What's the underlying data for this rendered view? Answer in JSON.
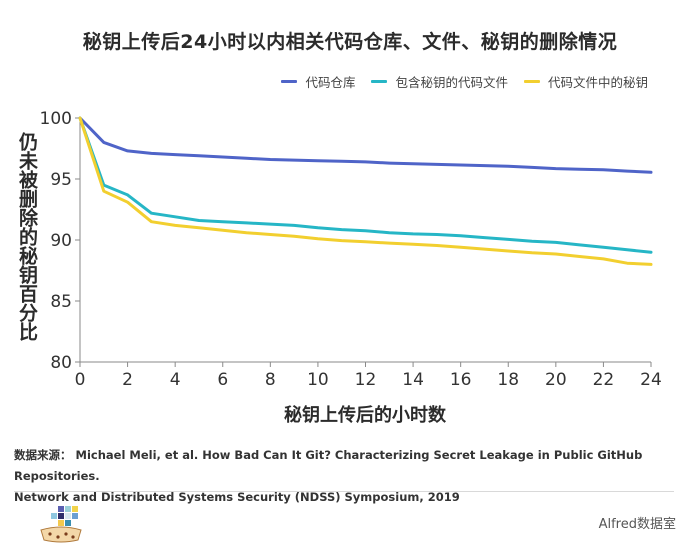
{
  "chart_data": {
    "type": "line",
    "title": "秘钥上传后24小时以内相关代码仓库、文件、秘钥的删除情况",
    "xlabel": "秘钥上传后的小时数",
    "ylabel": "仍未被删除的秘钥百分比",
    "xlim": [
      0,
      24
    ],
    "ylim": [
      80,
      100
    ],
    "xticks": [
      0,
      2,
      4,
      6,
      8,
      10,
      12,
      14,
      16,
      18,
      20,
      22,
      24
    ],
    "yticks": [
      80,
      85,
      90,
      95,
      100
    ],
    "legend_position": "top-right",
    "series": [
      {
        "name": "代码仓库",
        "color": "#4f64c8",
        "x": [
          0,
          1,
          2,
          3,
          4,
          5,
          6,
          7,
          8,
          9,
          10,
          11,
          12,
          13,
          14,
          15,
          16,
          17,
          18,
          19,
          20,
          21,
          22,
          23,
          24
        ],
        "values": [
          100,
          98.0,
          97.3,
          97.1,
          97.0,
          96.9,
          96.8,
          96.7,
          96.6,
          96.55,
          96.5,
          96.45,
          96.4,
          96.3,
          96.25,
          96.2,
          96.15,
          96.1,
          96.05,
          95.95,
          95.85,
          95.8,
          95.75,
          95.65,
          95.55
        ]
      },
      {
        "name": "包含秘钥的代码文件",
        "color": "#26b6c6",
        "x": [
          0,
          1,
          2,
          3,
          4,
          5,
          6,
          7,
          8,
          9,
          10,
          11,
          12,
          13,
          14,
          15,
          16,
          17,
          18,
          19,
          20,
          21,
          22,
          23,
          24
        ],
        "values": [
          100,
          94.5,
          93.7,
          92.2,
          91.9,
          91.6,
          91.5,
          91.4,
          91.3,
          91.2,
          91.0,
          90.85,
          90.75,
          90.6,
          90.5,
          90.45,
          90.35,
          90.2,
          90.05,
          89.9,
          89.8,
          89.6,
          89.4,
          89.2,
          89.0
        ]
      },
      {
        "name": "代码文件中的秘钥",
        "color": "#f2cf2f",
        "x": [
          0,
          1,
          2,
          3,
          4,
          5,
          6,
          7,
          8,
          9,
          10,
          11,
          12,
          13,
          14,
          15,
          16,
          17,
          18,
          19,
          20,
          21,
          22,
          23,
          24
        ],
        "values": [
          100,
          94.0,
          93.1,
          91.5,
          91.2,
          91.0,
          90.8,
          90.6,
          90.45,
          90.3,
          90.1,
          89.95,
          89.85,
          89.75,
          89.65,
          89.55,
          89.4,
          89.25,
          89.1,
          88.95,
          88.85,
          88.65,
          88.45,
          88.1,
          88.0
        ]
      }
    ]
  },
  "source": {
    "line1": "数据来源： Michael Meli, et al.  How Bad Can It Git? Characterizing Secret Leakage in Public GitHub Repositories.",
    "line2": "Network and Distributed Systems Security (NDSS) Symposium, 2019"
  },
  "brand": "Alfred数据室",
  "colors": {
    "axis": "#8a8a8a",
    "tick_text": "#333333"
  }
}
